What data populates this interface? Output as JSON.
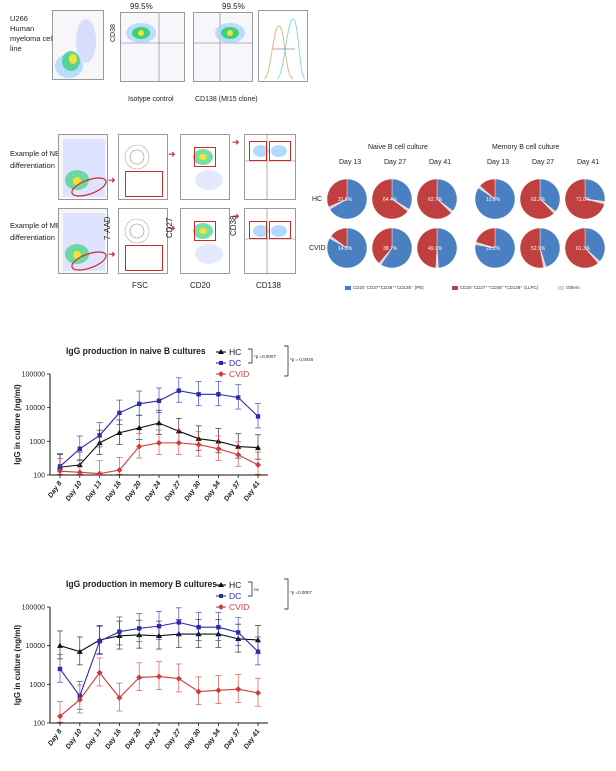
{
  "flow_top": {
    "cell_line_label": [
      "U266",
      "Human",
      "myeloma cell",
      "line"
    ],
    "pct_left": "99.5%",
    "pct_right": "99.5%",
    "y_axis": "CD38",
    "x_label_left": "Isotype control",
    "x_label_right": "CD138 (MI15 clone)"
  },
  "flow_diff": {
    "nb_label": [
      "Example of NB",
      "differentiation"
    ],
    "mb_label": [
      "Example of MB",
      "differentiation"
    ],
    "axis_7aad": "7-AAD",
    "axis_cd27": "CD27",
    "axis_cd38": "CD38",
    "axis_fsc": "FSC",
    "axis_cd20": "CD20",
    "axis_cd138": "CD138"
  },
  "pies": {
    "naive_title": "Naive B cell culture",
    "memory_title": "Memory B cell culture",
    "days": [
      "Day 13",
      "Day 27",
      "Day 41"
    ],
    "rows": [
      "HC",
      "CVID"
    ],
    "naive_hc": [
      "31.5%",
      "64.4%",
      "62.7%"
    ],
    "naive_cvid": [
      "14.9%",
      "38.7%",
      "49.1%"
    ],
    "memory_hc": [
      "13.6%",
      "62.2%",
      "71.0%"
    ],
    "memory_cvid": [
      "20.2%",
      "52.9%",
      "61.3%"
    ],
    "naive_hc_vals": [
      31.5,
      64.4,
      62.7
    ],
    "naive_cvid_vals": [
      14.9,
      38.7,
      49.1
    ],
    "memory_hc_vals": [
      13.6,
      62.2,
      71.0
    ],
    "memory_cvid_vals": [
      20.2,
      52.9,
      61.3
    ],
    "legend_pb": "CD20⁻CD27⁺CD38⁺⁺CD138⁻ (PB)",
    "legend_llpc": "CD20⁻CD27⁺⁺CD38⁺⁺CD138⁺ (LLPC)",
    "legend_others": "Others",
    "color_pb": "#4a7fc1",
    "color_llpc": "#c0403f",
    "color_others": "#d9d9d9"
  },
  "chart_data": [
    {
      "type": "line",
      "title": "IgG production in naive B cultures",
      "ylabel": "IgG in culture (ng/ml)",
      "yscale": "log",
      "ylim": [
        100,
        100000
      ],
      "yticks": [
        "100",
        "1000",
        "10000",
        "100000"
      ],
      "categories": [
        "Day 8",
        "Day 10",
        "Day 13",
        "Day 16",
        "Day 20",
        "Day 24",
        "Day 27",
        "Day 30",
        "Day 34",
        "Day 37",
        "Day 41"
      ],
      "series": [
        {
          "name": "HC",
          "color": "#111111",
          "marker": "triangle",
          "values": [
            170,
            200,
            900,
            1800,
            2500,
            3500,
            2000,
            1200,
            1000,
            700,
            650
          ]
        },
        {
          "name": "DC",
          "color": "#2b2bb0",
          "marker": "square",
          "values": [
            180,
            600,
            1500,
            7000,
            13000,
            16000,
            32000,
            25000,
            25000,
            20000,
            5500
          ]
        },
        {
          "name": "CVID",
          "color": "#d23a3a",
          "marker": "diamond",
          "values": [
            130,
            120,
            110,
            140,
            700,
            900,
            900,
            800,
            600,
            400,
            200
          ]
        }
      ],
      "stats": {
        "label_a": "*p =0.0007",
        "label_b": "*p = 0.0048"
      }
    },
    {
      "type": "line",
      "title": "IgG production in memory B cultures",
      "ylabel": "IgG in culture (ng/ml)",
      "yscale": "log",
      "ylim": [
        100,
        100000
      ],
      "yticks": [
        "100",
        "1000",
        "10000",
        "100000"
      ],
      "categories": [
        "Day 8",
        "Day 10",
        "Day 13",
        "Day 16",
        "Day 20",
        "Day 24",
        "Day 27",
        "Day 30",
        "Day 34",
        "Day 37",
        "Day 41"
      ],
      "series": [
        {
          "name": "HC",
          "color": "#111111",
          "marker": "triangle",
          "values": [
            10000,
            7000,
            14000,
            18000,
            19000,
            18000,
            20000,
            20000,
            20000,
            15000,
            14000
          ]
        },
        {
          "name": "DC",
          "color": "#2b2bb0",
          "marker": "square",
          "values": [
            2500,
            500,
            13000,
            23000,
            28000,
            32000,
            40000,
            30000,
            30000,
            22000,
            7000
          ]
        },
        {
          "name": "CVID",
          "color": "#d23a3a",
          "marker": "diamond",
          "values": [
            150,
            400,
            2000,
            450,
            1500,
            1600,
            1400,
            650,
            700,
            750,
            600
          ]
        }
      ],
      "stats": {
        "label_a": "ns",
        "label_b": "*p =0.0007"
      }
    }
  ]
}
